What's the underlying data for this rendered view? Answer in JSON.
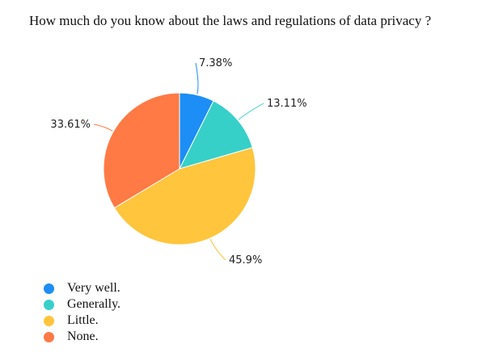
{
  "chart_data": {
    "type": "pie",
    "title": "How much do you know about the laws and regulations of data privacy ?",
    "categories": [
      "Very well.",
      "Generally.",
      "Little.",
      "None."
    ],
    "values": [
      7.38,
      13.11,
      45.9,
      33.61
    ],
    "labels": [
      "7.38%",
      "13.11%",
      "45.9%",
      "33.61%"
    ],
    "colors": [
      "#1c8ef5",
      "#37d0c9",
      "#ffc53d",
      "#ff7a45"
    ],
    "legend_position": "bottom-left"
  }
}
